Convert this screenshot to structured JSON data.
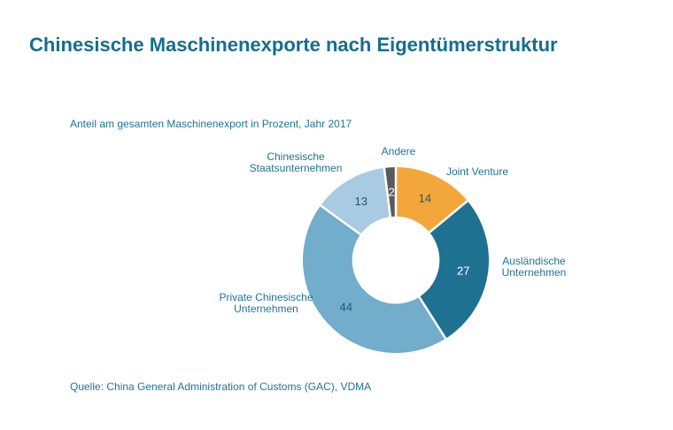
{
  "page": {
    "title": "Chinesische Maschinenexporte nach Eigentümerstruktur",
    "subtitle": "Anteil am gesamten Maschinenexport in Prozent, Jahr 2017",
    "source": "Quelle: China General Administration of Customs (GAC), VDMA"
  },
  "colors": {
    "title_text": "#156E8E",
    "label_text": "#1F7396",
    "value_dark": "#1D5A74",
    "value_light": "#FFFFFF",
    "background": "#FFFFFF",
    "separator": "#FFFFFF"
  },
  "chart_data": {
    "type": "pie",
    "subtype": "donut",
    "title": "Chinesische Maschinenexporte nach Eigentümerstruktur",
    "subtitle": "Anteil am gesamten Maschinenexport in Prozent, Jahr 2017",
    "unit": "percent",
    "year": "2017",
    "direction": "clockwise",
    "start_angle_deg": 0,
    "inner_radius_ratio": 0.47,
    "legend_position": "outside-labels",
    "series": [
      {
        "label": "Joint Venture",
        "value": 14,
        "color": "#F3A63A",
        "value_color": "#1D5A74"
      },
      {
        "label": "Ausländische Unternehmen",
        "value": 27,
        "color": "#1F7191",
        "value_color": "#FFFFFF"
      },
      {
        "label": "Private Chinesische Unternehmen",
        "value": 44,
        "color": "#72ADCB",
        "value_color": "#1D5A74"
      },
      {
        "label": "Chinesische Staatsunternehmen",
        "value": 13,
        "color": "#A9CBE2",
        "value_color": "#1D5A74"
      },
      {
        "label": "Andere",
        "value": 2,
        "color": "#595A5C",
        "value_color": "#FFFFFF"
      }
    ]
  }
}
